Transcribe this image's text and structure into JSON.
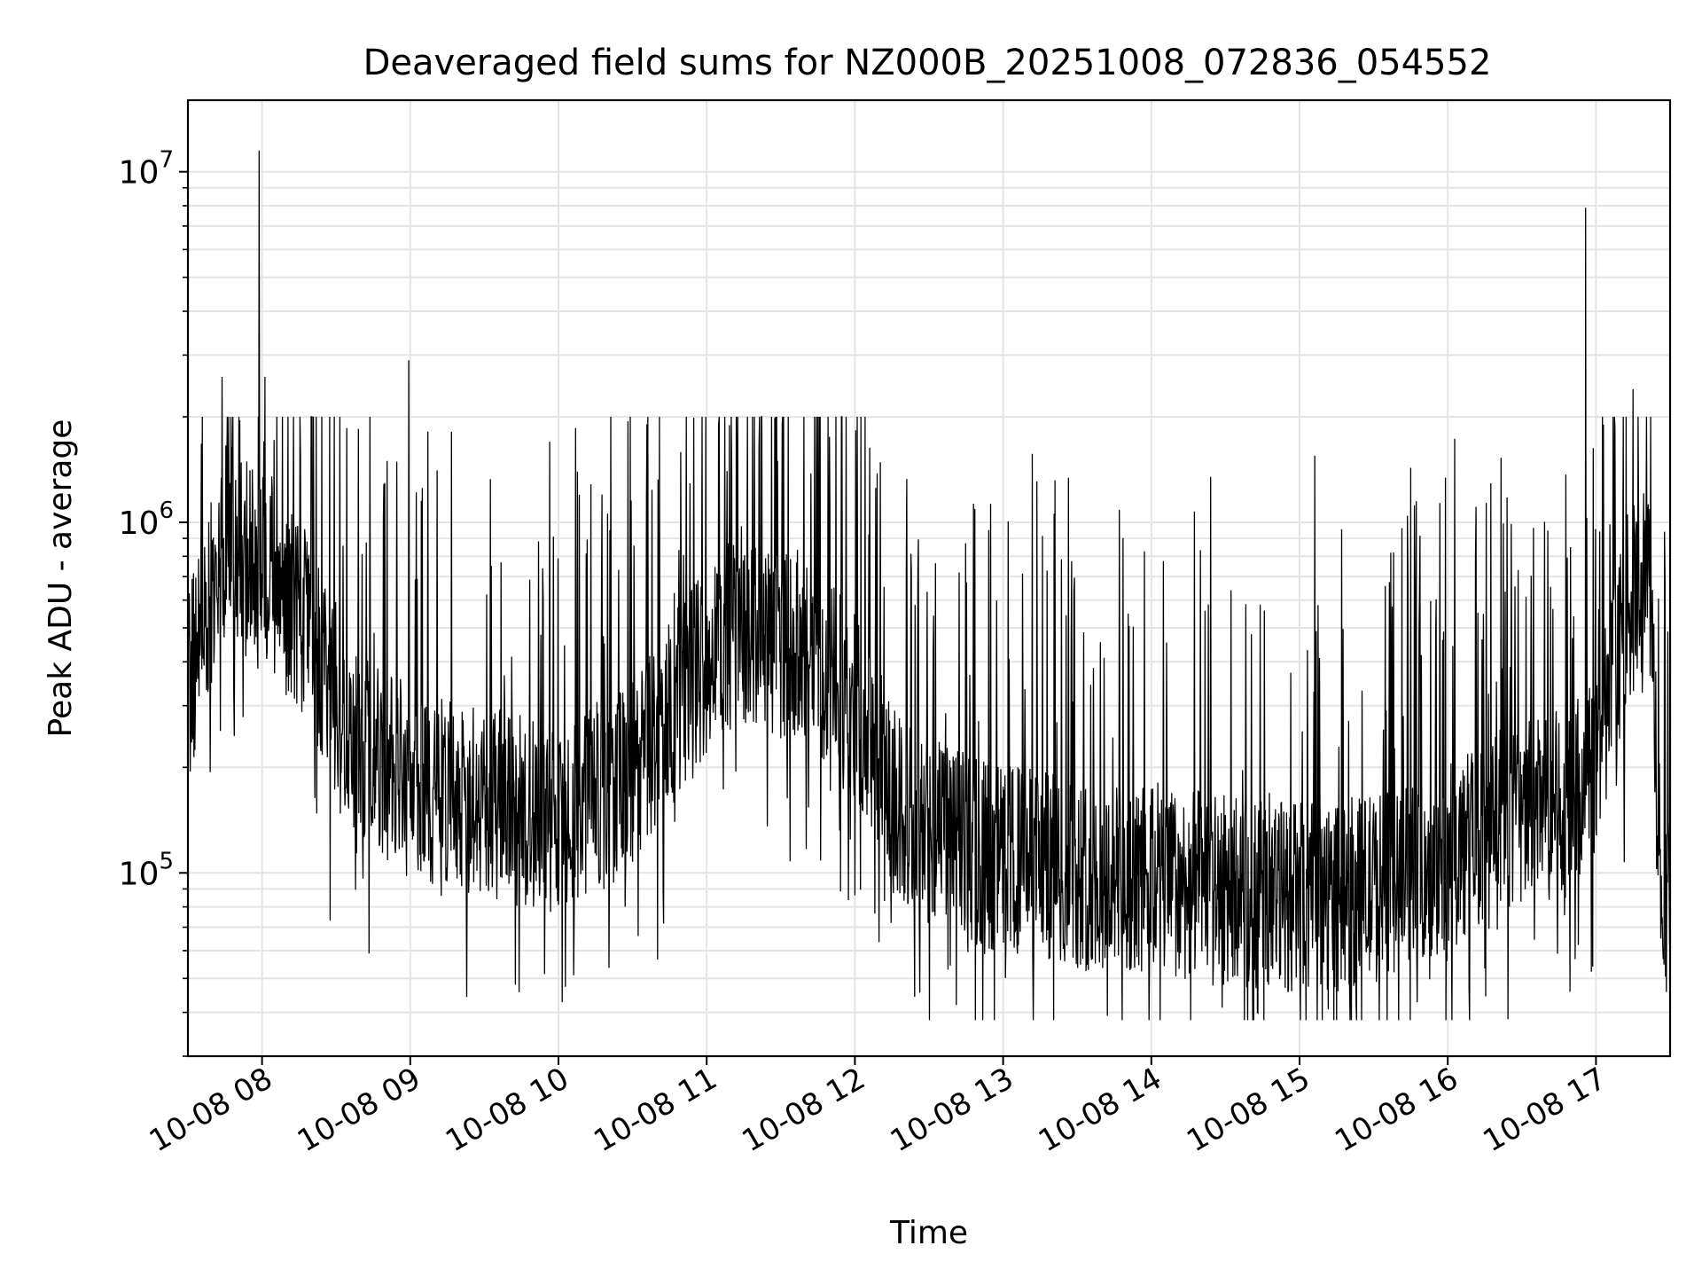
{
  "chart_data": {
    "type": "line",
    "title": "Deaveraged field sums for NZ000B_20251008_072836_054552",
    "xlabel": "Time",
    "ylabel": "Peak ADU - average",
    "yscale": "log",
    "ylim": [
      30000,
      16000000
    ],
    "xlim_hours": [
      7.5,
      17.5
    ],
    "grid": true,
    "line_color": "#000000",
    "x_ticks": [
      {
        "hour": 8,
        "label": "10-08 08"
      },
      {
        "hour": 9,
        "label": "10-08 09"
      },
      {
        "hour": 10,
        "label": "10-08 10"
      },
      {
        "hour": 11,
        "label": "10-08 11"
      },
      {
        "hour": 12,
        "label": "10-08 12"
      },
      {
        "hour": 13,
        "label": "10-08 13"
      },
      {
        "hour": 14,
        "label": "10-08 14"
      },
      {
        "hour": 15,
        "label": "10-08 15"
      },
      {
        "hour": 16,
        "label": "10-08 16"
      },
      {
        "hour": 17,
        "label": "10-08 17"
      }
    ],
    "y_ticks": [
      {
        "value": 100000,
        "base": "10",
        "exp": "5"
      },
      {
        "value": 1000000,
        "base": "10",
        "exp": "6"
      },
      {
        "value": 10000000,
        "base": "10",
        "exp": "7"
      }
    ],
    "series": [
      {
        "name": "Peak ADU - average",
        "envelope_hours": [
          7.5,
          7.75,
          8.0,
          8.3,
          8.6,
          9.0,
          9.5,
          10.0,
          10.5,
          10.9,
          11.2,
          11.6,
          12.0,
          12.3,
          12.7,
          13.0,
          13.5,
          14.0,
          14.5,
          15.0,
          15.5,
          16.0,
          16.4,
          16.8,
          17.0,
          17.2,
          17.35,
          17.45,
          17.5
        ],
        "envelope_median": [
          330000,
          900000,
          800000,
          500000,
          250000,
          180000,
          160000,
          140000,
          190000,
          360000,
          500000,
          450000,
          300000,
          150000,
          120000,
          110000,
          100000,
          95000,
          90000,
          85000,
          90000,
          110000,
          140000,
          160000,
          200000,
          550000,
          700000,
          90000,
          80000
        ],
        "spikes": [
          {
            "hour": 7.98,
            "value": 11500000
          },
          {
            "hour": 8.99,
            "value": 2900000
          },
          {
            "hour": 16.93,
            "value": 7900000
          },
          {
            "hour": 7.73,
            "value": 2600000
          },
          {
            "hour": 8.02,
            "value": 2600000
          },
          {
            "hour": 11.08,
            "value": 1900000
          },
          {
            "hour": 17.25,
            "value": 2400000
          },
          {
            "hour": 17.05,
            "value": 1900000
          }
        ]
      }
    ]
  }
}
